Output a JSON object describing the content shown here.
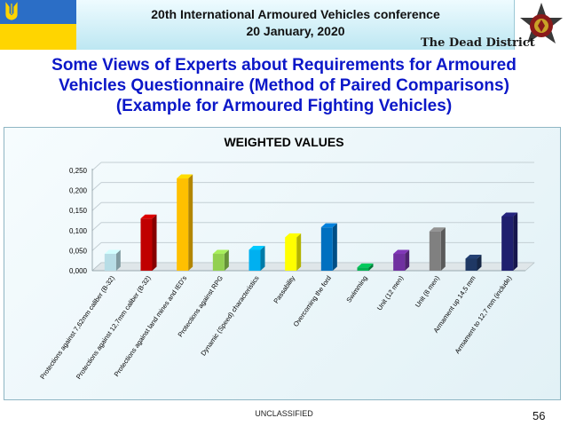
{
  "header": {
    "conference": "20th International Armoured Vehicles conference",
    "date": "20 January, 2020",
    "brand": "The Dead District"
  },
  "slide": {
    "title_lines": [
      "Some Views of Experts about Requirements for Armoured",
      "Vehicles Questionnaire (Method of Paired Comparisons)",
      "(Example for Armoured Fighting Vehicles)"
    ]
  },
  "footer": {
    "classification": "UNCLASSIFIED",
    "page_number": "56"
  },
  "colors": {
    "title_blue": "#0b17c8",
    "flag_blue": "#2b6ec6",
    "flag_yellow": "#ffd500"
  },
  "icons": [
    "trident-icon",
    "unit-emblem-icon"
  ],
  "chart_data": {
    "type": "bar",
    "style": "3d-column",
    "title": "WEIGHTED VALUES",
    "xlabel": "",
    "ylabel": "",
    "ylim": [
      0,
      0.25
    ],
    "yticks": [
      "0,000",
      "0,050",
      "0,100",
      "0,150",
      "0,200",
      "0,250"
    ],
    "grid": true,
    "legend": "none",
    "categories": [
      "Protections against 7,62mm caliber (B-32)",
      "Protections against 12,7mm caliber (B-32)",
      "Protections against land mines and IED's",
      "Protections against RPG",
      "Dynamic (Speed) characteristics",
      "Passability",
      "Overcoming the ford",
      "Swimming",
      "Unit (12 men)",
      "Unit (8 men)",
      "Armament up 14,5 mm",
      "Armament to 12,7 mm (include)"
    ],
    "values": [
      0.042,
      0.13,
      0.23,
      0.042,
      0.052,
      0.083,
      0.108,
      0.008,
      0.042,
      0.098,
      0.03,
      0.135
    ],
    "bar_colors": [
      "#b7dde6",
      "#c00000",
      "#ffc000",
      "#92d050",
      "#00b0f0",
      "#ffff00",
      "#0070c0",
      "#00b050",
      "#7030a0",
      "#808080",
      "#1f3864",
      "#1f1f6e"
    ]
  }
}
